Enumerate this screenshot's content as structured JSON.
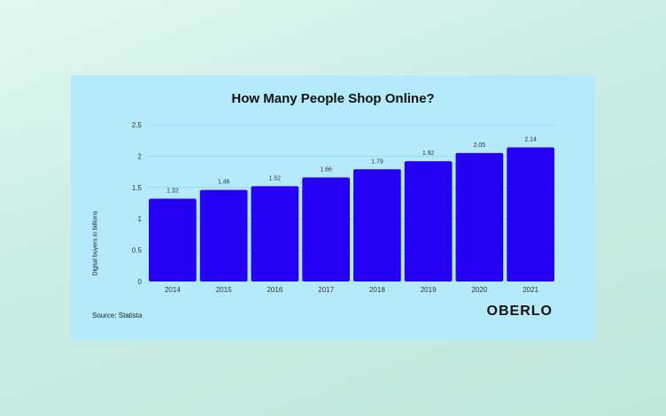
{
  "chart_data": {
    "type": "bar",
    "title": "How Many People Shop Online?",
    "ylabel": "Digital buyers in billions",
    "xlabel": "",
    "categories": [
      "2014",
      "2015",
      "2016",
      "2017",
      "2018",
      "2019",
      "2020",
      "2021"
    ],
    "values": [
      1.32,
      1.46,
      1.52,
      1.66,
      1.79,
      1.92,
      2.05,
      2.14
    ],
    "data_labels": [
      "1.32",
      "1.46",
      "1.52",
      "1.66",
      "1.79",
      "1.92",
      "2.05",
      "2.14"
    ],
    "ylim": [
      0,
      2.5
    ],
    "yticks": [
      "0",
      "0.5",
      "1",
      "1.5",
      "2",
      "2.5"
    ],
    "grid": true,
    "bar_color": "#2600f5",
    "background_color": "#b5eafc"
  },
  "footer": {
    "source": "Source: Statista",
    "brand": "OBERLO"
  }
}
